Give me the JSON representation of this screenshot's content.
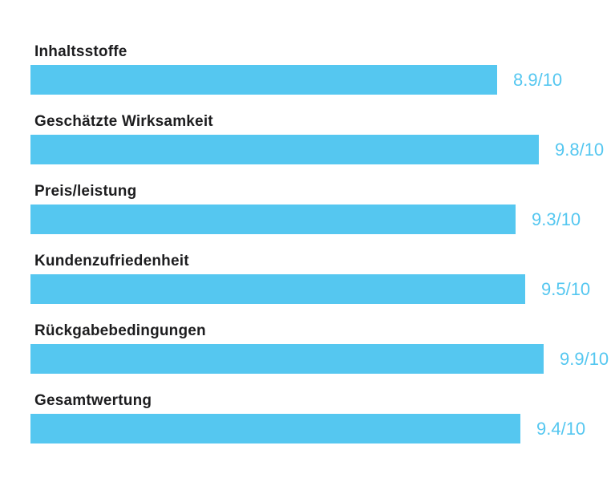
{
  "page": {
    "background_color": "#ffffff",
    "accent_color": "#55c7f0",
    "label_color": "#1d1d1f"
  },
  "chart_data": {
    "type": "bar",
    "orientation": "horizontal",
    "title": "",
    "xlabel": "",
    "ylabel": "",
    "value_range": [
      0,
      10
    ],
    "value_suffix": "/10",
    "grid": false,
    "legend": false,
    "categories": [
      "Inhaltsstoffe",
      "Geschätzte Wirksamkeit",
      "Preis/leistung",
      "Kundenzufriedenheit",
      "Rückgabebedingungen",
      "Gesamtwertung"
    ],
    "values": [
      8.9,
      9.8,
      9.3,
      9.5,
      9.9,
      9.4
    ],
    "value_labels": [
      "8.9/10",
      "9.8/10",
      "9.3/10",
      "9.5/10",
      "9.9/10",
      "9.4/10"
    ]
  }
}
